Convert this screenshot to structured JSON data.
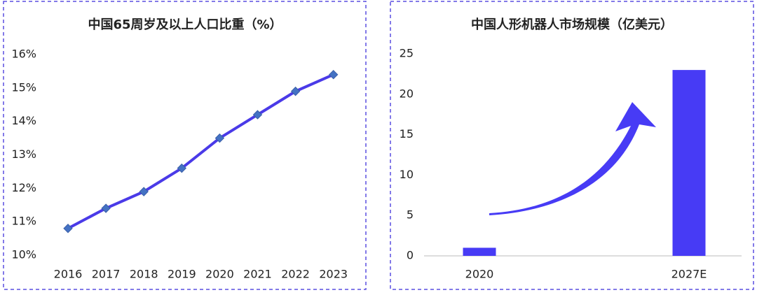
{
  "chart_data": [
    {
      "type": "line",
      "title": "中国65周岁及以上人口比重（%）",
      "categories": [
        "2016",
        "2017",
        "2018",
        "2019",
        "2020",
        "2021",
        "2022",
        "2023"
      ],
      "values": [
        10.8,
        11.4,
        11.9,
        12.6,
        13.5,
        14.2,
        14.9,
        15.4
      ],
      "color": "#4a3ae8",
      "marker_color": "#4472c4",
      "ylim": [
        10,
        16
      ],
      "yticks": [
        {
          "value": 10,
          "label": "10%"
        },
        {
          "value": 11,
          "label": "11%"
        },
        {
          "value": 12,
          "label": "12%"
        },
        {
          "value": 13,
          "label": "13%"
        },
        {
          "value": 14,
          "label": "14%"
        },
        {
          "value": 15,
          "label": "15%"
        },
        {
          "value": 16,
          "label": "16%"
        }
      ]
    },
    {
      "type": "bar",
      "title": "中国人形机器人市场规模（亿美元）",
      "categories": [
        "2020",
        "2027E"
      ],
      "values": [
        1,
        23
      ],
      "color": "#473bf5",
      "ylim": [
        0,
        25
      ],
      "yticks": [
        0,
        5,
        10,
        15,
        20,
        25
      ]
    }
  ]
}
